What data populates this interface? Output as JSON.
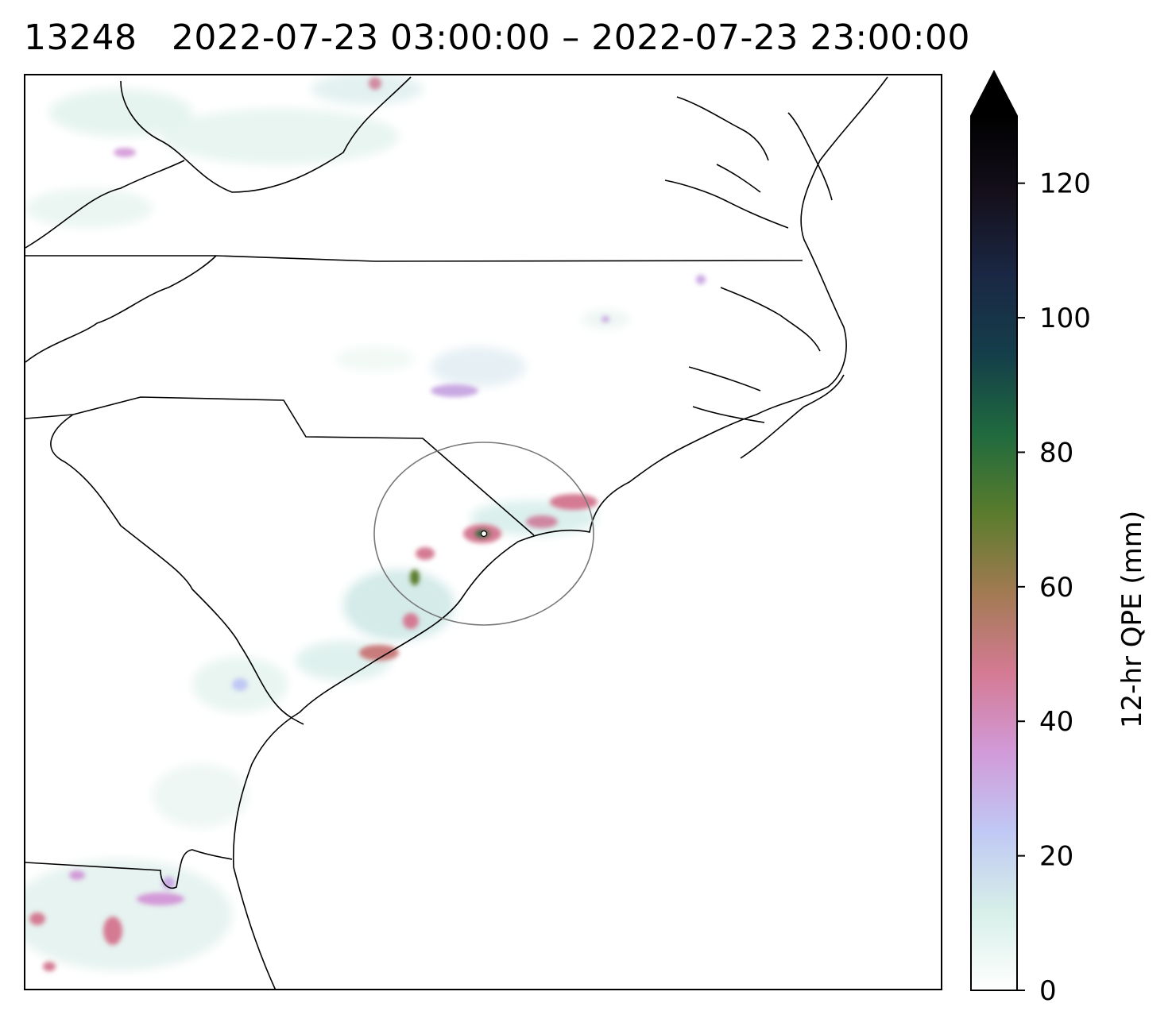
{
  "title": "13248   2022-07-23 03:00:00 – 2022-07-23 23:00:00",
  "colorbar": {
    "label": "12-hr QPE (mm)",
    "min": 0,
    "max": 130,
    "extend": "max",
    "ticks": [
      0,
      20,
      40,
      60,
      80,
      100,
      120
    ],
    "colormap": [
      "#ffffff",
      "#d6efe8",
      "#c0c8f4",
      "#d19ad8",
      "#d47a93",
      "#a27a52",
      "#5a7c2c",
      "#1f6a3e",
      "#143e4a",
      "#1a2744",
      "#15101c",
      "#000000"
    ]
  },
  "map": {
    "features": [
      "coastline",
      "state-borders",
      "qpe-precipitation",
      "radar-range-circle",
      "radar-site-marker"
    ]
  }
}
